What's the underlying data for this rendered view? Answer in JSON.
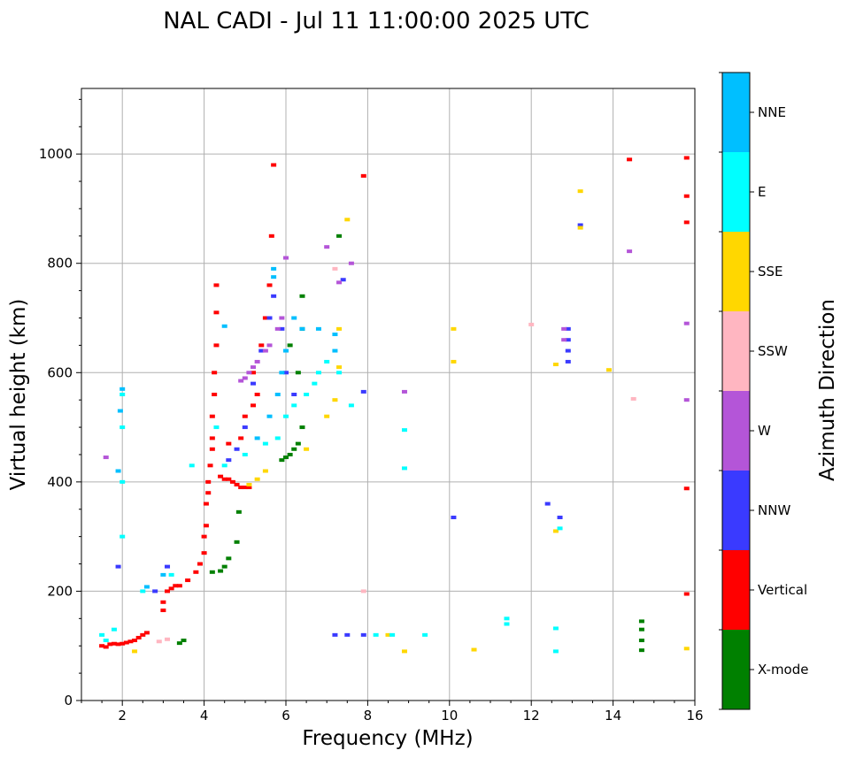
{
  "chart_data": {
    "type": "scatter",
    "title": "NAL CADI - Jul 11 11:00:00 2025 UTC",
    "xlabel": "Frequency (MHz)",
    "ylabel": "Virtual height (km)",
    "xlim": [
      1,
      16
    ],
    "ylim": [
      0,
      1120
    ],
    "xticks": [
      2,
      4,
      6,
      8,
      10,
      12,
      14,
      16
    ],
    "yticks": [
      0,
      200,
      400,
      600,
      800,
      1000
    ],
    "grid": true,
    "colorbar": {
      "label": "Azimuth Direction",
      "categories": [
        {
          "name": "X-mode",
          "color": "#008000"
        },
        {
          "name": "Vertical",
          "color": "#ff0000"
        },
        {
          "name": "NNW",
          "color": "#3a3aff"
        },
        {
          "name": "W",
          "color": "#b455d8"
        },
        {
          "name": "SSW",
          "color": "#ffb6c1"
        },
        {
          "name": "SSE",
          "color": "#ffd700"
        },
        {
          "name": "E",
          "color": "#00ffff"
        },
        {
          "name": "NNE",
          "color": "#00bfff"
        }
      ]
    },
    "series": [
      {
        "name": "Vertical",
        "points": [
          [
            1.5,
            100
          ],
          [
            1.6,
            98
          ],
          [
            1.7,
            103
          ],
          [
            1.8,
            104
          ],
          [
            1.9,
            103
          ],
          [
            2.0,
            104
          ],
          [
            2.1,
            106
          ],
          [
            2.2,
            108
          ],
          [
            2.3,
            110
          ],
          [
            2.4,
            115
          ],
          [
            2.5,
            120
          ],
          [
            2.6,
            124
          ],
          [
            3.0,
            165
          ],
          [
            3.0,
            180
          ],
          [
            3.1,
            200
          ],
          [
            3.2,
            205
          ],
          [
            3.3,
            210
          ],
          [
            3.4,
            210
          ],
          [
            3.6,
            220
          ],
          [
            3.8,
            235
          ],
          [
            3.9,
            250
          ],
          [
            4.0,
            270
          ],
          [
            4.0,
            300
          ],
          [
            4.05,
            320
          ],
          [
            4.05,
            360
          ],
          [
            4.1,
            380
          ],
          [
            4.1,
            400
          ],
          [
            4.15,
            430
          ],
          [
            4.2,
            460
          ],
          [
            4.2,
            480
          ],
          [
            4.2,
            520
          ],
          [
            4.25,
            560
          ],
          [
            4.25,
            600
          ],
          [
            4.3,
            650
          ],
          [
            4.3,
            710
          ],
          [
            4.3,
            760
          ],
          [
            4.4,
            410
          ],
          [
            4.5,
            405
          ],
          [
            4.6,
            405
          ],
          [
            4.7,
            400
          ],
          [
            4.8,
            395
          ],
          [
            4.9,
            390
          ],
          [
            5.0,
            390
          ],
          [
            5.1,
            390
          ],
          [
            4.6,
            470
          ],
          [
            4.9,
            480
          ],
          [
            5.0,
            520
          ],
          [
            5.2,
            540
          ],
          [
            5.3,
            560
          ],
          [
            5.2,
            600
          ],
          [
            5.4,
            650
          ],
          [
            5.5,
            700
          ],
          [
            5.6,
            760
          ],
          [
            5.65,
            850
          ],
          [
            5.7,
            980
          ],
          [
            7.9,
            960
          ],
          [
            15.8,
            993
          ],
          [
            15.8,
            923
          ],
          [
            15.8,
            875
          ],
          [
            15.8,
            388
          ],
          [
            15.8,
            195
          ],
          [
            14.4,
            990
          ]
        ]
      },
      {
        "name": "X-mode",
        "points": [
          [
            3.4,
            105
          ],
          [
            3.5,
            110
          ],
          [
            4.2,
            235
          ],
          [
            4.4,
            237
          ],
          [
            4.5,
            245
          ],
          [
            4.6,
            260
          ],
          [
            4.8,
            290
          ],
          [
            4.85,
            345
          ],
          [
            5.9,
            440
          ],
          [
            6.0,
            445
          ],
          [
            6.1,
            450
          ],
          [
            6.2,
            460
          ],
          [
            6.3,
            470
          ],
          [
            6.4,
            500
          ],
          [
            6.3,
            600
          ],
          [
            6.4,
            680
          ],
          [
            6.4,
            740
          ],
          [
            6.1,
            650
          ],
          [
            7.3,
            850
          ],
          [
            14.7,
            92
          ],
          [
            14.7,
            110
          ],
          [
            14.7,
            130
          ],
          [
            14.7,
            145
          ]
        ]
      },
      {
        "name": "NNW",
        "points": [
          [
            1.9,
            245
          ],
          [
            2.8,
            200
          ],
          [
            3.1,
            245
          ],
          [
            4.6,
            440
          ],
          [
            4.8,
            460
          ],
          [
            5.0,
            500
          ],
          [
            5.2,
            580
          ],
          [
            5.4,
            640
          ],
          [
            5.6,
            700
          ],
          [
            5.7,
            740
          ],
          [
            5.9,
            680
          ],
          [
            6.0,
            600
          ],
          [
            6.2,
            560
          ],
          [
            7.2,
            120
          ],
          [
            7.5,
            120
          ],
          [
            7.9,
            120
          ],
          [
            7.9,
            565
          ],
          [
            10.1,
            335
          ],
          [
            12.4,
            360
          ],
          [
            12.7,
            335
          ],
          [
            12.9,
            620
          ],
          [
            12.9,
            640
          ],
          [
            12.9,
            660
          ],
          [
            12.9,
            680
          ],
          [
            13.2,
            870
          ],
          [
            7.4,
            770
          ]
        ]
      },
      {
        "name": "W",
        "points": [
          [
            1.6,
            445
          ],
          [
            4.9,
            585
          ],
          [
            5.0,
            590
          ],
          [
            5.1,
            600
          ],
          [
            5.2,
            610
          ],
          [
            5.3,
            620
          ],
          [
            5.5,
            640
          ],
          [
            5.6,
            650
          ],
          [
            5.8,
            680
          ],
          [
            5.9,
            700
          ],
          [
            6.0,
            810
          ],
          [
            7.0,
            830
          ],
          [
            7.3,
            765
          ],
          [
            7.6,
            800
          ],
          [
            8.9,
            565
          ],
          [
            12.8,
            680
          ],
          [
            12.8,
            660
          ],
          [
            15.8,
            690
          ],
          [
            15.8,
            550
          ],
          [
            14.4,
            822
          ]
        ]
      },
      {
        "name": "SSW",
        "points": [
          [
            2.9,
            108
          ],
          [
            3.1,
            112
          ],
          [
            7.9,
            200
          ],
          [
            12.0,
            688
          ],
          [
            14.5,
            552
          ],
          [
            7.2,
            790
          ]
        ]
      },
      {
        "name": "SSE",
        "points": [
          [
            2.3,
            90
          ],
          [
            5.1,
            395
          ],
          [
            5.3,
            405
          ],
          [
            5.5,
            420
          ],
          [
            6.5,
            460
          ],
          [
            7.0,
            520
          ],
          [
            7.2,
            550
          ],
          [
            7.3,
            610
          ],
          [
            7.3,
            680
          ],
          [
            7.5,
            880
          ],
          [
            8.5,
            120
          ],
          [
            8.9,
            90
          ],
          [
            10.1,
            680
          ],
          [
            10.1,
            620
          ],
          [
            10.6,
            93
          ],
          [
            12.6,
            615
          ],
          [
            12.6,
            310
          ],
          [
            13.2,
            932
          ],
          [
            13.2,
            865
          ],
          [
            13.9,
            605
          ],
          [
            15.8,
            95
          ]
        ]
      },
      {
        "name": "E",
        "points": [
          [
            1.5,
            120
          ],
          [
            1.6,
            110
          ],
          [
            1.8,
            130
          ],
          [
            2.0,
            300
          ],
          [
            2.0,
            400
          ],
          [
            2.0,
            500
          ],
          [
            2.0,
            560
          ],
          [
            2.5,
            200
          ],
          [
            3.2,
            230
          ],
          [
            3.7,
            430
          ],
          [
            4.3,
            500
          ],
          [
            4.5,
            430
          ],
          [
            5.0,
            450
          ],
          [
            5.5,
            470
          ],
          [
            5.8,
            480
          ],
          [
            6.0,
            520
          ],
          [
            6.2,
            540
          ],
          [
            6.5,
            560
          ],
          [
            6.7,
            580
          ],
          [
            6.8,
            600
          ],
          [
            7.0,
            620
          ],
          [
            7.3,
            600
          ],
          [
            7.6,
            540
          ],
          [
            8.2,
            120
          ],
          [
            8.6,
            120
          ],
          [
            8.9,
            425
          ],
          [
            8.9,
            495
          ],
          [
            9.4,
            120
          ],
          [
            11.4,
            150
          ],
          [
            11.4,
            140
          ],
          [
            12.6,
            90
          ],
          [
            12.6,
            132
          ],
          [
            12.7,
            315
          ]
        ]
      },
      {
        "name": "NNE",
        "points": [
          [
            1.9,
            420
          ],
          [
            1.95,
            530
          ],
          [
            2.0,
            570
          ],
          [
            2.6,
            208
          ],
          [
            3.0,
            230
          ],
          [
            4.5,
            685
          ],
          [
            5.3,
            480
          ],
          [
            5.6,
            520
          ],
          [
            5.8,
            560
          ],
          [
            5.9,
            600
          ],
          [
            6.0,
            640
          ],
          [
            6.2,
            700
          ],
          [
            6.4,
            680
          ],
          [
            6.8,
            680
          ],
          [
            7.2,
            670
          ],
          [
            7.2,
            640
          ],
          [
            5.7,
            775
          ],
          [
            5.7,
            790
          ]
        ]
      }
    ]
  }
}
